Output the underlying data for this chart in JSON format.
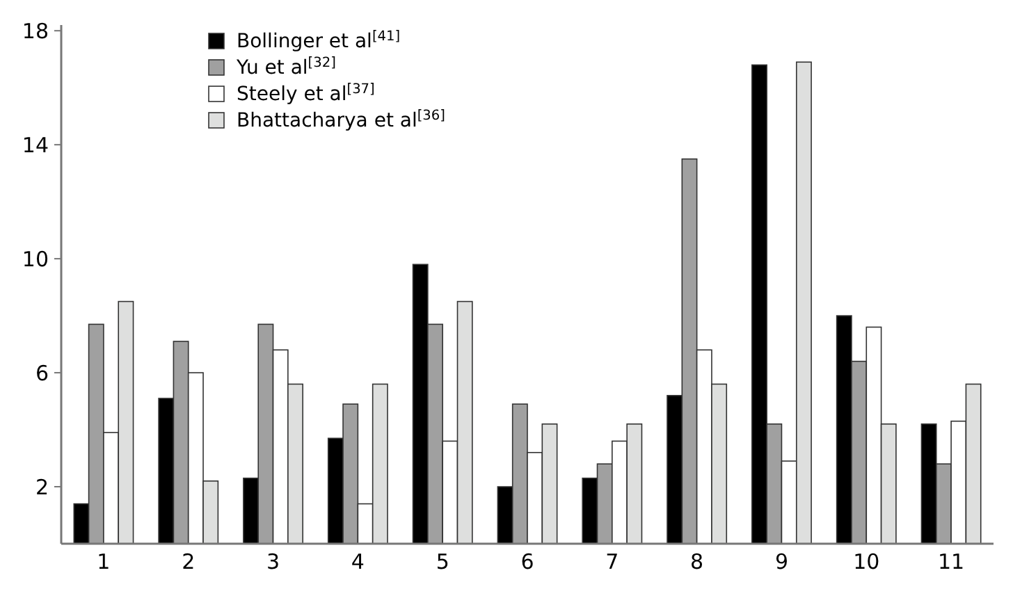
{
  "chart_data": {
    "type": "bar",
    "categories": [
      "1",
      "2",
      "3",
      "4",
      "5",
      "6",
      "7",
      "8",
      "9",
      "10",
      "11"
    ],
    "series": [
      {
        "name": "Bollinger et al$^{[41]}$",
        "color": "#000000",
        "values": [
          1.4,
          5.1,
          2.3,
          3.7,
          9.8,
          2.0,
          2.3,
          5.2,
          16.8,
          8.0,
          4.2
        ]
      },
      {
        "name": "Yu et al$^{[32]}$",
        "color": "#a0a0a0",
        "values": [
          7.7,
          7.1,
          7.7,
          4.9,
          7.7,
          4.9,
          2.8,
          13.5,
          4.2,
          6.4,
          2.8
        ]
      },
      {
        "name": "Steely et al$^{[37]}$",
        "color": "#ffffff",
        "values": [
          3.9,
          6.0,
          6.8,
          1.4,
          3.6,
          3.2,
          3.6,
          6.8,
          2.9,
          7.6,
          4.3
        ]
      },
      {
        "name": "Bhattacharya et al$^{[36]}$",
        "color": "#dedfde",
        "values": [
          8.5,
          2.2,
          5.6,
          5.6,
          8.5,
          4.2,
          4.2,
          5.6,
          16.9,
          4.2,
          5.6
        ]
      }
    ],
    "ylim": [
      0,
      18.2
    ],
    "yticks": [
      2,
      6,
      10,
      14,
      18
    ],
    "grid": false,
    "legend": "top left"
  }
}
